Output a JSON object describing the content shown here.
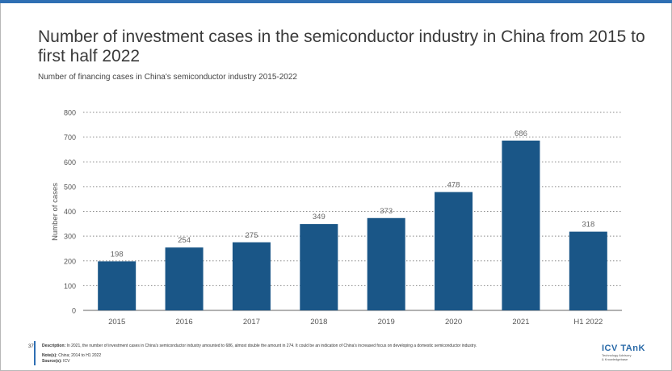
{
  "page": {
    "title": "Number of investment cases in the semiconductor industry in China from 2015 to first half 2022",
    "subtitle": "Number of financing cases in China's semiconductor industry 2015-2022",
    "page_number": "37",
    "description_label": "Description:",
    "description": "In 2021, the number of investment cases in China's semiconductor industry amounted to 686, almost double the amount in 274. It could be an indication of China's increased focus on developing a domestic semiconductor industry.",
    "note_label": "Note(s):",
    "note": "China; 2014 to H1 2022",
    "source_label": "Source(s):",
    "source": "ICV",
    "logo_main": "ICV TAnK",
    "logo_line1": "Technology Advisory",
    "logo_line2": "& Knowledgebase"
  },
  "colors": {
    "bar": "#1a5687",
    "accent": "#2f6fb3",
    "grid": "#888888"
  },
  "chart_data": {
    "type": "bar",
    "categories": [
      "2015",
      "2016",
      "2017",
      "2018",
      "2019",
      "2020",
      "2021",
      "H1 2022"
    ],
    "values": [
      198,
      254,
      275,
      349,
      373,
      478,
      686,
      318
    ],
    "data_labels": [
      "198",
      "254",
      "275",
      "349",
      "373",
      "478",
      "686",
      "318"
    ],
    "title": "",
    "xlabel": "",
    "ylabel": "Number of cases",
    "ylim": [
      0,
      800
    ],
    "yticks": [
      0,
      100,
      200,
      300,
      400,
      500,
      600,
      700,
      800
    ],
    "grid": "horizontal dotted",
    "legend": "none"
  }
}
